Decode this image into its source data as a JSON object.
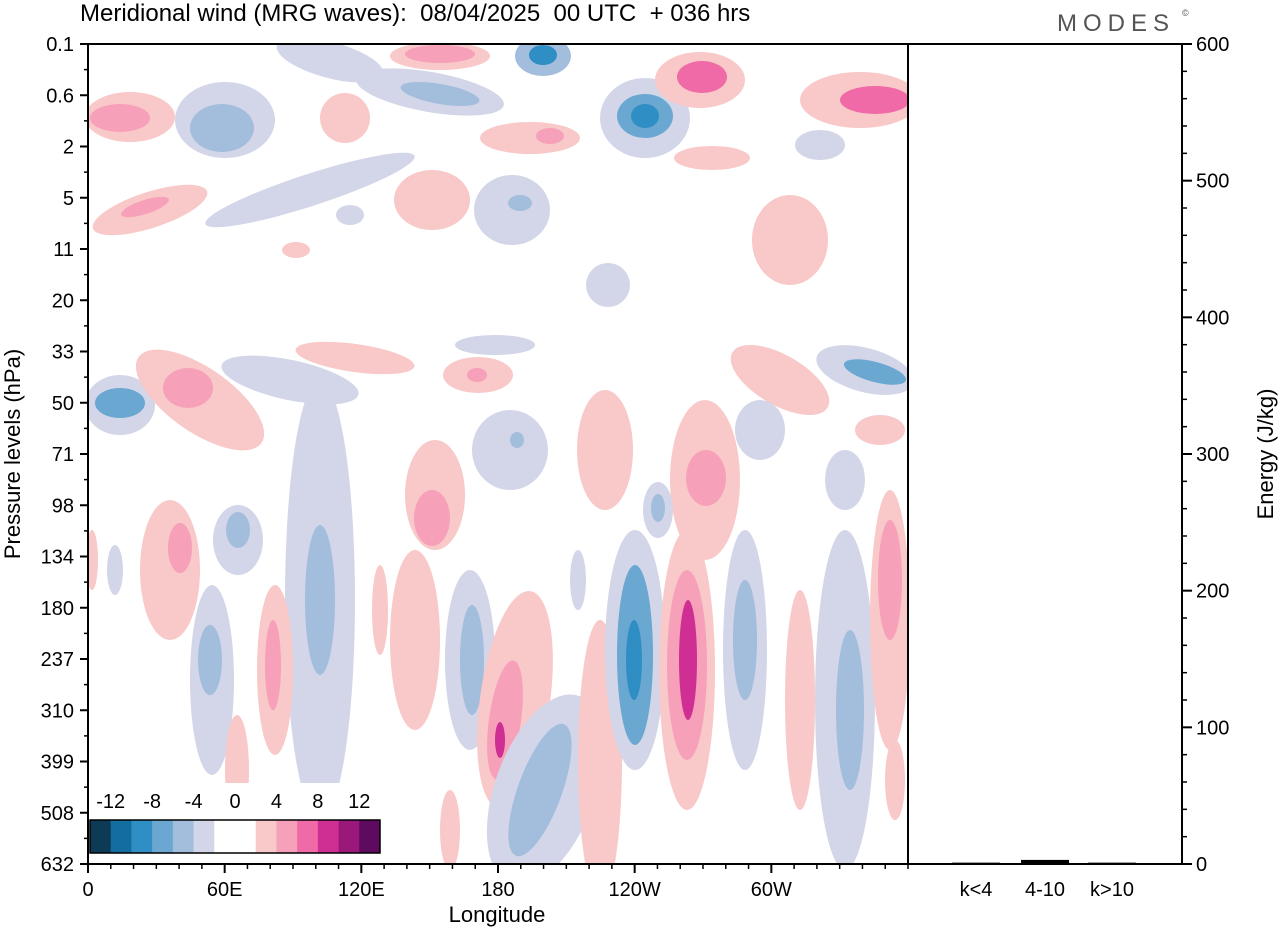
{
  "header": {
    "title": "Meridional wind (MRG waves):  08/04/2025  00 UTC  + 036 hrs",
    "brand": "MODES",
    "brand_mark": "©"
  },
  "chart_data": [
    {
      "type": "heatmap",
      "title": "Meridional wind (MRG waves):  08/04/2025  00 UTC  + 036 hrs",
      "xlabel": "Longitude",
      "ylabel": "Pressure levels (hPa)",
      "x_ticks": [
        "0",
        "60E",
        "120E",
        "180",
        "120W",
        "60W"
      ],
      "x_tick_degrees": [
        0,
        60,
        120,
        180,
        240,
        300
      ],
      "xlim": [
        0,
        360
      ],
      "y_ticks": [
        "0.1",
        "0.6",
        "2",
        "5",
        "11",
        "20",
        "33",
        "50",
        "71",
        "98",
        "134",
        "180",
        "237",
        "310",
        "399",
        "508",
        "632"
      ],
      "colorbar": {
        "labels": [
          "-12",
          "-8",
          "-4",
          "0",
          "4",
          "8",
          "12"
        ],
        "colors": [
          "#0d3b56",
          "#136d9e",
          "#2f8ec4",
          "#6aa7d1",
          "#a3bddd",
          "#d3d6e8",
          "#ffffff",
          "#ffffff",
          "#f9c8c8",
          "#f7a0b9",
          "#ef6aa6",
          "#cf2e92",
          "#99187a",
          "#5e0a5e"
        ]
      },
      "notes_visible": "contour field of meridional wind by longitude and pressure level"
    },
    {
      "type": "bar",
      "ylabel": "Energy (J/kg)",
      "categories": [
        "k<4",
        "4-10",
        "k>10"
      ],
      "values": [
        1,
        3,
        1
      ],
      "ylim": [
        0,
        600
      ],
      "y_ticks": [
        "0",
        "100",
        "200",
        "300",
        "400",
        "500",
        "600"
      ]
    }
  ]
}
